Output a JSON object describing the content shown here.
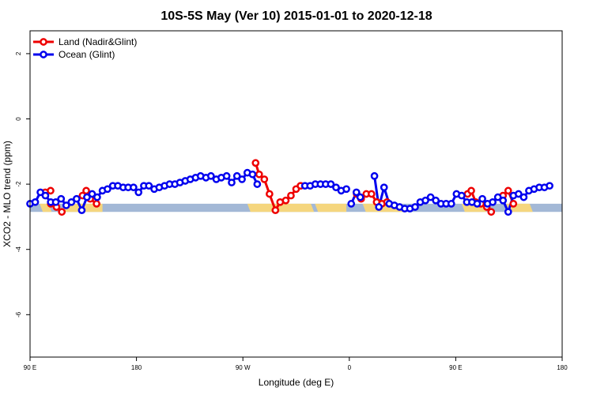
{
  "chart_data": {
    "type": "line",
    "title": "10S-5S May (Ver 10)   2015-01-01 to 2020-12-18",
    "xlabel": "Longitude (deg E)",
    "ylabel": "XCO2 - MLO trend (ppm)",
    "xlim": [
      90,
      450
    ],
    "ylim": [
      -7.3,
      2.7
    ],
    "x_ticks": [
      {
        "value": 90,
        "label": "90 E"
      },
      {
        "value": 162,
        "label": "180"
      },
      {
        "value": 234,
        "label": "90 W"
      },
      {
        "value": 306,
        "label": "0"
      },
      {
        "value": 378,
        "label": "90 E"
      },
      {
        "value": 450,
        "label": "180"
      }
    ],
    "y_ticks": [
      {
        "value": 2,
        "label": "2"
      },
      {
        "value": 0,
        "label": "0"
      },
      {
        "value": -2,
        "label": "-2"
      },
      {
        "value": -4,
        "label": "-4"
      },
      {
        "value": -6,
        "label": "-6"
      }
    ],
    "legend": {
      "position": "top-left"
    },
    "band": {
      "lower": -2.85,
      "upper": -2.6,
      "ocean_color": "#a3b8d6",
      "land_color": "#f5d67e"
    },
    "land_ranges": [
      [
        96.5,
        102.5
      ],
      [
        112,
        139
      ],
      [
        237,
        280
      ],
      [
        282.7,
        304
      ],
      [
        315,
        341
      ],
      [
        382,
        398.5
      ],
      [
        412,
        428
      ]
    ],
    "series": [
      {
        "name": "Land (Nadir&Glint)",
        "color": "#ee0000",
        "segments": [
          [
            [
              100.3,
              -2.25
            ],
            [
              103.9,
              -2.2
            ]
          ],
          [
            [
              104,
              -2.6
            ],
            [
              107.9,
              -2.7
            ],
            [
              111.5,
              -2.85
            ]
          ],
          [
            [
              125.5,
              -2.35
            ],
            [
              128,
              -2.2
            ],
            [
              130.7,
              -2.45
            ],
            [
              135,
              -2.6
            ]
          ],
          [
            [
              242.6,
              -1.35
            ],
            [
              245,
              -1.7
            ],
            [
              248.5,
              -1.85
            ],
            [
              252,
              -2.3
            ],
            [
              256,
              -2.8
            ],
            [
              259.2,
              -2.55
            ],
            [
              263,
              -2.5
            ],
            [
              266.5,
              -2.35
            ],
            [
              270,
              -2.15
            ],
            [
              273,
              -2.05
            ]
          ],
          [
            [
              311,
              -2.3
            ],
            [
              314,
              -2.45
            ],
            [
              317.5,
              -2.3
            ],
            [
              321,
              -2.3
            ],
            [
              324.5,
              -2.55
            ],
            [
              328,
              -2.6
            ],
            [
              331.5,
              -2.55
            ]
          ],
          [
            [
              386,
              -2.3
            ],
            [
              388.5,
              -2.2
            ],
            [
              391.5,
              -2.55
            ],
            [
              395,
              -2.6
            ]
          ],
          [
            [
              399,
              -2.7
            ],
            [
              402,
              -2.85
            ]
          ],
          [
            [
              410,
              -2.35
            ],
            [
              413.5,
              -2.2
            ],
            [
              417,
              -2.6
            ]
          ]
        ]
      },
      {
        "name": "Ocean (Glint)",
        "color": "#0000ee",
        "segments": [
          [
            [
              90,
              -2.6
            ],
            [
              93.5,
              -2.55
            ],
            [
              97,
              -2.25
            ],
            [
              100.4,
              -2.35
            ],
            [
              104,
              -2.55
            ],
            [
              107.4,
              -2.55
            ],
            [
              111,
              -2.45
            ],
            [
              114.5,
              -2.65
            ],
            [
              118,
              -2.55
            ],
            [
              121.5,
              -2.45
            ],
            [
              125,
              -2.8
            ],
            [
              128.5,
              -2.4
            ],
            [
              132,
              -2.3
            ],
            [
              135.4,
              -2.4
            ],
            [
              139,
              -2.2
            ],
            [
              142.4,
              -2.15
            ],
            [
              146,
              -2.05
            ],
            [
              149.4,
              -2.05
            ],
            [
              153,
              -2.1
            ],
            [
              156.4,
              -2.1
            ],
            [
              160,
              -2.1
            ],
            [
              163.4,
              -2.25
            ],
            [
              167,
              -2.05
            ],
            [
              170.4,
              -2.05
            ],
            [
              174,
              -2.15
            ],
            [
              177.4,
              -2.1
            ],
            [
              181,
              -2.05
            ],
            [
              184.4,
              -2
            ],
            [
              188,
              -2
            ],
            [
              191.4,
              -1.95
            ],
            [
              195,
              -1.9
            ],
            [
              198.4,
              -1.85
            ],
            [
              202,
              -1.8
            ],
            [
              205.4,
              -1.75
            ],
            [
              209,
              -1.8
            ],
            [
              212.4,
              -1.75
            ],
            [
              216,
              -1.85
            ],
            [
              219.4,
              -1.8
            ],
            [
              223,
              -1.75
            ],
            [
              226.4,
              -1.95
            ],
            [
              230,
              -1.75
            ],
            [
              233.4,
              -1.85
            ],
            [
              237,
              -1.65
            ],
            [
              240.5,
              -1.7
            ],
            [
              243.7,
              -2
            ]
          ],
          [
            [
              276,
              -2.05
            ],
            [
              279.5,
              -2.05
            ],
            [
              283,
              -2
            ],
            [
              286.5,
              -2
            ],
            [
              290,
              -2
            ],
            [
              293.5,
              -2
            ],
            [
              297,
              -2.1
            ],
            [
              300.5,
              -2.2
            ],
            [
              304,
              -2.15
            ]
          ],
          [
            [
              307.3,
              -2.6
            ],
            [
              310.8,
              -2.25
            ]
          ],
          [
            [
              313.4,
              -2.4
            ]
          ],
          [
            [
              323,
              -1.75
            ],
            [
              326,
              -2.7
            ],
            [
              329.5,
              -2.1
            ],
            [
              333,
              -2.6
            ]
          ],
          [
            [
              336.5,
              -2.65
            ],
            [
              340,
              -2.7
            ],
            [
              343.5,
              -2.75
            ],
            [
              347,
              -2.75
            ],
            [
              350.5,
              -2.7
            ],
            [
              354,
              -2.55
            ],
            [
              357.5,
              -2.5
            ],
            [
              361,
              -2.4
            ],
            [
              364.5,
              -2.5
            ],
            [
              368,
              -2.6
            ],
            [
              371.5,
              -2.6
            ],
            [
              375,
              -2.6
            ],
            [
              378.5,
              -2.3
            ],
            [
              382,
              -2.35
            ],
            [
              385.5,
              -2.55
            ],
            [
              389,
              -2.55
            ],
            [
              392.5,
              -2.6
            ],
            [
              396,
              -2.45
            ],
            [
              399.5,
              -2.6
            ],
            [
              403,
              -2.55
            ],
            [
              406.5,
              -2.4
            ],
            [
              410,
              -2.5
            ],
            [
              413.5,
              -2.85
            ],
            [
              417,
              -2.35
            ],
            [
              420.5,
              -2.3
            ],
            [
              424,
              -2.4
            ],
            [
              427.5,
              -2.2
            ],
            [
              431,
              -2.15
            ],
            [
              434.5,
              -2.1
            ],
            [
              438,
              -2.1
            ],
            [
              441.5,
              -2.05
            ]
          ]
        ]
      }
    ]
  }
}
